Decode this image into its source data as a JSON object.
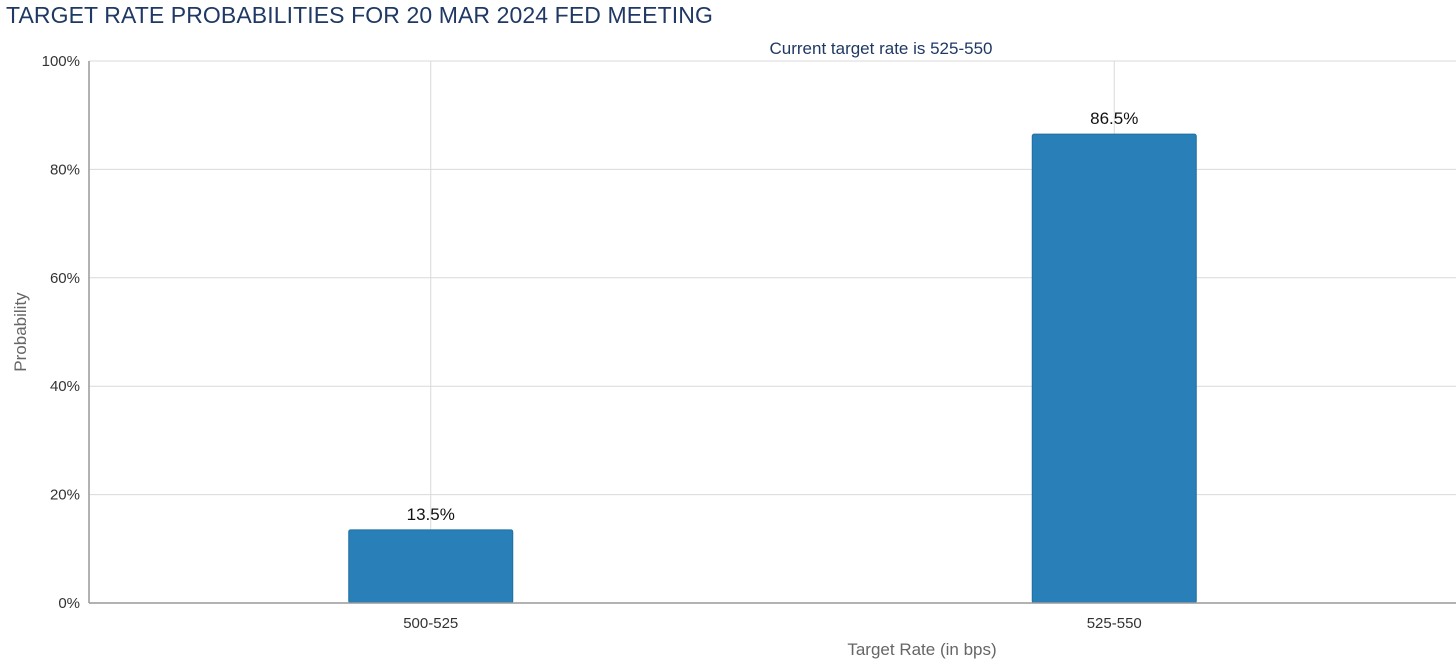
{
  "title": "TARGET RATE PROBABILITIES FOR 20 MAR 2024 FED MEETING",
  "chart_data": {
    "type": "bar",
    "title": "TARGET RATE PROBABILITIES FOR 20 MAR 2024 FED MEETING",
    "subtitle": "Current target rate is 525-550",
    "xlabel": "Target Rate (in bps)",
    "ylabel": "Probability",
    "categories": [
      "500-525",
      "525-550"
    ],
    "values": [
      13.5,
      86.5
    ],
    "data_labels": [
      "13.5%",
      "86.5%"
    ],
    "ylim": [
      0,
      100
    ],
    "yticks": [
      0,
      20,
      40,
      60,
      80,
      100
    ],
    "ytick_labels": [
      "0%",
      "20%",
      "40%",
      "60%",
      "80%",
      "100%"
    ],
    "grid": true,
    "legend": "none",
    "bar_color": "#2980b9"
  }
}
